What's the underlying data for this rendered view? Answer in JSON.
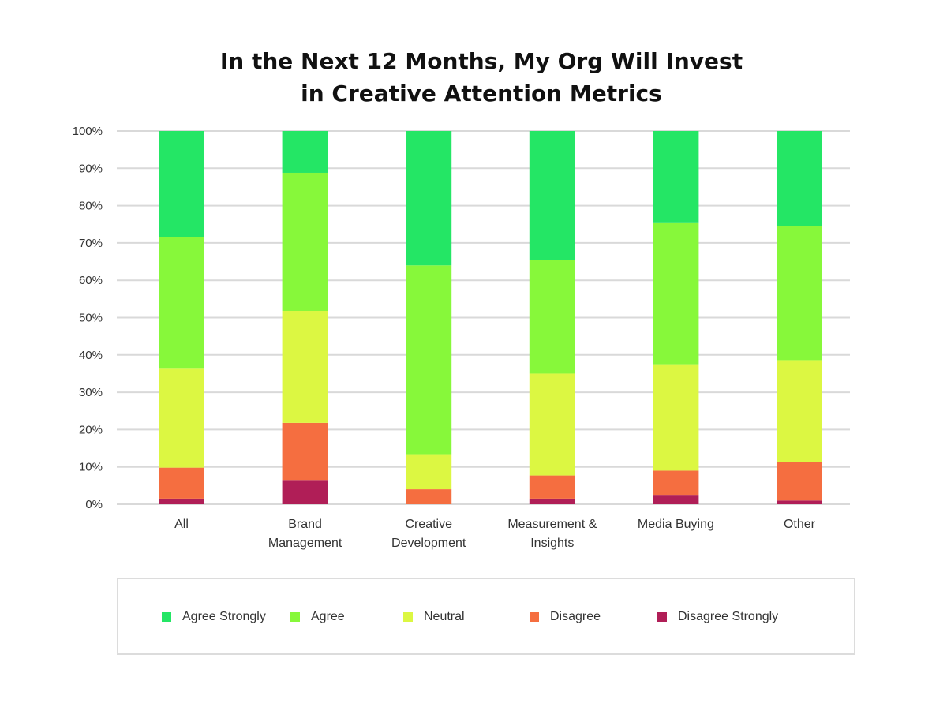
{
  "chart_data": {
    "type": "bar",
    "stacked": true,
    "title": [
      "In the Next 12 Months, My Org Will Invest",
      "in Creative Attention Metrics"
    ],
    "categories": [
      [
        "All"
      ],
      [
        "Brand",
        "Management"
      ],
      [
        "Creative",
        "Development"
      ],
      [
        "Measurement &",
        "Insights"
      ],
      [
        "Media Buying"
      ],
      [
        "Other"
      ]
    ],
    "ylim": [
      0,
      100
    ],
    "yticks": [
      0,
      10,
      20,
      30,
      40,
      50,
      60,
      70,
      80,
      90,
      100
    ],
    "ytick_labels": [
      "0%",
      "10%",
      "20%",
      "30%",
      "40%",
      "50%",
      "60%",
      "70%",
      "80%",
      "90%",
      "100%"
    ],
    "grid": true,
    "legend_position": "bottom",
    "series": [
      {
        "name": "Disagree Strongly",
        "color": "#b01e57",
        "values": [
          1.5,
          6.5,
          0,
          1.5,
          2.3,
          1.0
        ]
      },
      {
        "name": "Disagree",
        "color": "#f56e40",
        "values": [
          8.3,
          15.3,
          4.0,
          6.2,
          6.7,
          10.3
        ]
      },
      {
        "name": "Neutral",
        "color": "#dcf742",
        "values": [
          26.5,
          30.0,
          9.2,
          27.3,
          28.5,
          27.3
        ]
      },
      {
        "name": "Agree",
        "color": "#87f83a",
        "values": [
          35.3,
          37.0,
          50.8,
          30.5,
          37.8,
          35.9
        ]
      },
      {
        "name": "Agree Strongly",
        "color": "#24e665",
        "values": [
          28.4,
          11.2,
          36.0,
          34.5,
          24.7,
          25.5
        ]
      }
    ],
    "legend_order": [
      "Agree Strongly",
      "Agree",
      "Neutral",
      "Disagree",
      "Disagree Strongly"
    ]
  }
}
